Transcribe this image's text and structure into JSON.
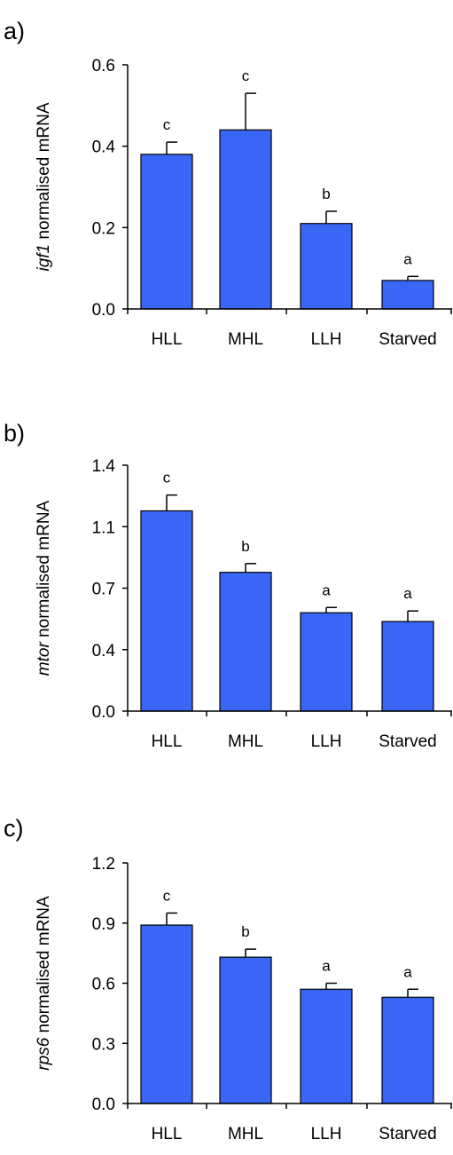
{
  "chart_data": [
    {
      "type": "bar",
      "panel_label": "a)",
      "gene": "igf1",
      "ylabel_suffix": " normalised mRNA",
      "categories": [
        "HLL",
        "MHL",
        "LLH",
        "Starved"
      ],
      "values": [
        0.38,
        0.44,
        0.21,
        0.07
      ],
      "errors": [
        0.03,
        0.09,
        0.03,
        0.01
      ],
      "significance": [
        "c",
        "c",
        "b",
        "a"
      ],
      "ylim": [
        0,
        0.6
      ],
      "yticks": [
        "0.0",
        "0.2",
        "0.4",
        "0.6"
      ],
      "ytick_values": [
        0,
        0.2,
        0.4,
        0.6
      ],
      "bar_color": "#3a66f5"
    },
    {
      "type": "bar",
      "panel_label": "b)",
      "gene": "mtor",
      "ylabel_suffix": " normalised mRNA",
      "categories": [
        "HLL",
        "MHL",
        "LLH",
        "Starved"
      ],
      "values": [
        1.14,
        0.79,
        0.56,
        0.51
      ],
      "errors": [
        0.09,
        0.05,
        0.03,
        0.06
      ],
      "significance": [
        "c",
        "b",
        "a",
        "a"
      ],
      "ylim": [
        0,
        1.4
      ],
      "yticks": [
        "0.0",
        "0.4",
        "0.7",
        "1.1",
        "1.4"
      ],
      "ytick_values": [
        0,
        0.35,
        0.7,
        1.05,
        1.4
      ],
      "bar_color": "#3a66f5"
    },
    {
      "type": "bar",
      "panel_label": "c)",
      "gene": "rps6",
      "ylabel_suffix": " normalised mRNA",
      "categories": [
        "HLL",
        "MHL",
        "LLH",
        "Starved"
      ],
      "values": [
        0.89,
        0.73,
        0.57,
        0.53
      ],
      "errors": [
        0.06,
        0.04,
        0.03,
        0.04
      ],
      "significance": [
        "c",
        "b",
        "a",
        "a"
      ],
      "ylim": [
        0,
        1.2
      ],
      "yticks": [
        "0.0",
        "0.3",
        "0.6",
        "0.9",
        "1.2"
      ],
      "ytick_values": [
        0,
        0.3,
        0.6,
        0.9,
        1.2
      ],
      "bar_color": "#3a66f5"
    }
  ]
}
